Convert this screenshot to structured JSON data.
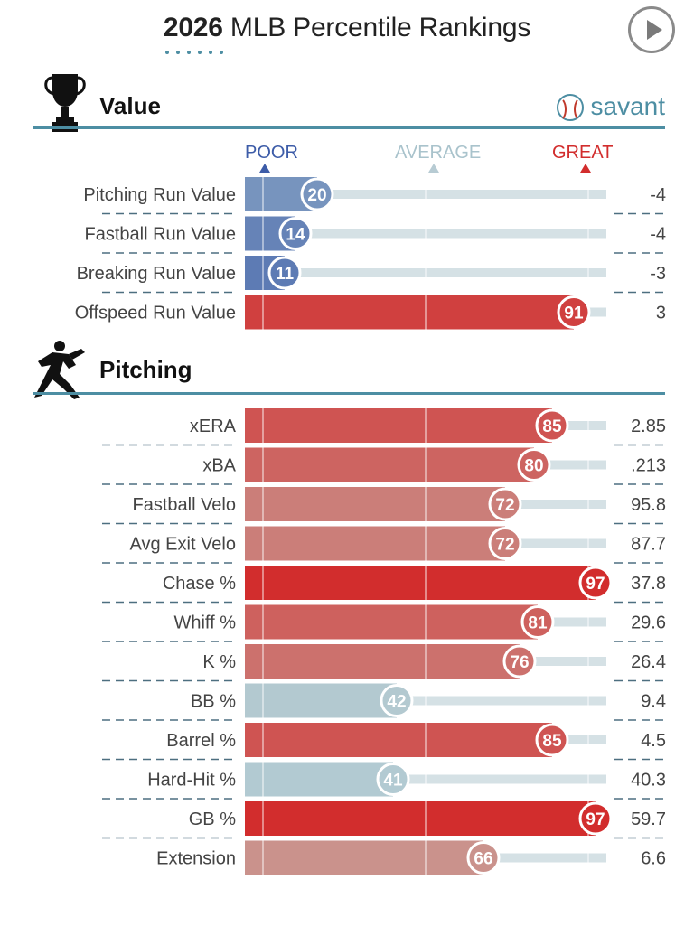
{
  "header": {
    "year": "2026",
    "title": "MLB Percentile Rankings"
  },
  "brand": "savant",
  "legend": {
    "poor": "POOR",
    "average": "AVERAGE",
    "great": "GREAT"
  },
  "colors": {
    "accent": "#4d8ea3",
    "poor": "#3d5ca8",
    "average": "#b7cbd3",
    "great": "#d22d2d"
  },
  "chart_data": [
    {
      "type": "bar",
      "section": "Value",
      "icon": "trophy-icon",
      "xlim": [
        0,
        100
      ],
      "rows": [
        {
          "label": "Pitching Run Value",
          "percentile": 20,
          "value": "-4"
        },
        {
          "label": "Fastball Run Value",
          "percentile": 14,
          "value": "-4"
        },
        {
          "label": "Breaking Run Value",
          "percentile": 11,
          "value": "-3"
        },
        {
          "label": "Offspeed Run Value",
          "percentile": 91,
          "value": "3"
        }
      ]
    },
    {
      "type": "bar",
      "section": "Pitching",
      "icon": "pitcher-icon",
      "xlim": [
        0,
        100
      ],
      "rows": [
        {
          "label": "xERA",
          "percentile": 85,
          "value": "2.85"
        },
        {
          "label": "xBA",
          "percentile": 80,
          "value": ".213"
        },
        {
          "label": "Fastball Velo",
          "percentile": 72,
          "value": "95.8"
        },
        {
          "label": "Avg Exit Velo",
          "percentile": 72,
          "value": "87.7"
        },
        {
          "label": "Chase %",
          "percentile": 97,
          "value": "37.8"
        },
        {
          "label": "Whiff %",
          "percentile": 81,
          "value": "29.6"
        },
        {
          "label": "K %",
          "percentile": 76,
          "value": "26.4"
        },
        {
          "label": "BB %",
          "percentile": 42,
          "value": "9.4"
        },
        {
          "label": "Barrel %",
          "percentile": 85,
          "value": "4.5"
        },
        {
          "label": "Hard-Hit %",
          "percentile": 41,
          "value": "40.3"
        },
        {
          "label": "GB %",
          "percentile": 97,
          "value": "59.7"
        },
        {
          "label": "Extension",
          "percentile": 66,
          "value": "6.6"
        }
      ]
    }
  ]
}
